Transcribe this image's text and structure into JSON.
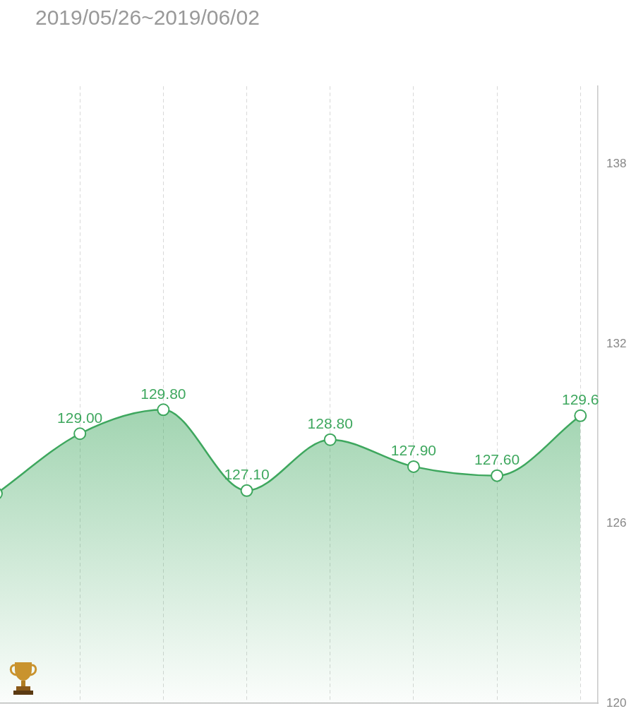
{
  "chart_data": {
    "type": "area",
    "title": "2019/05/26~2019/06/02",
    "categories": [
      null,
      null,
      null,
      null,
      null,
      null,
      null,
      null
    ],
    "values": [
      127.0,
      129.0,
      129.8,
      127.1,
      128.8,
      127.9,
      127.6,
      129.6
    ],
    "value_labels": [
      null,
      "129.00",
      "129.80",
      "127.10",
      "128.80",
      "127.90",
      "127.60",
      "129.6"
    ],
    "color": "#3ea75e",
    "ylim": [
      120,
      140.6
    ],
    "yticks": [
      120,
      126,
      132,
      138
    ],
    "grid": "x",
    "marker": "circle",
    "tick_labels": "y"
  }
}
